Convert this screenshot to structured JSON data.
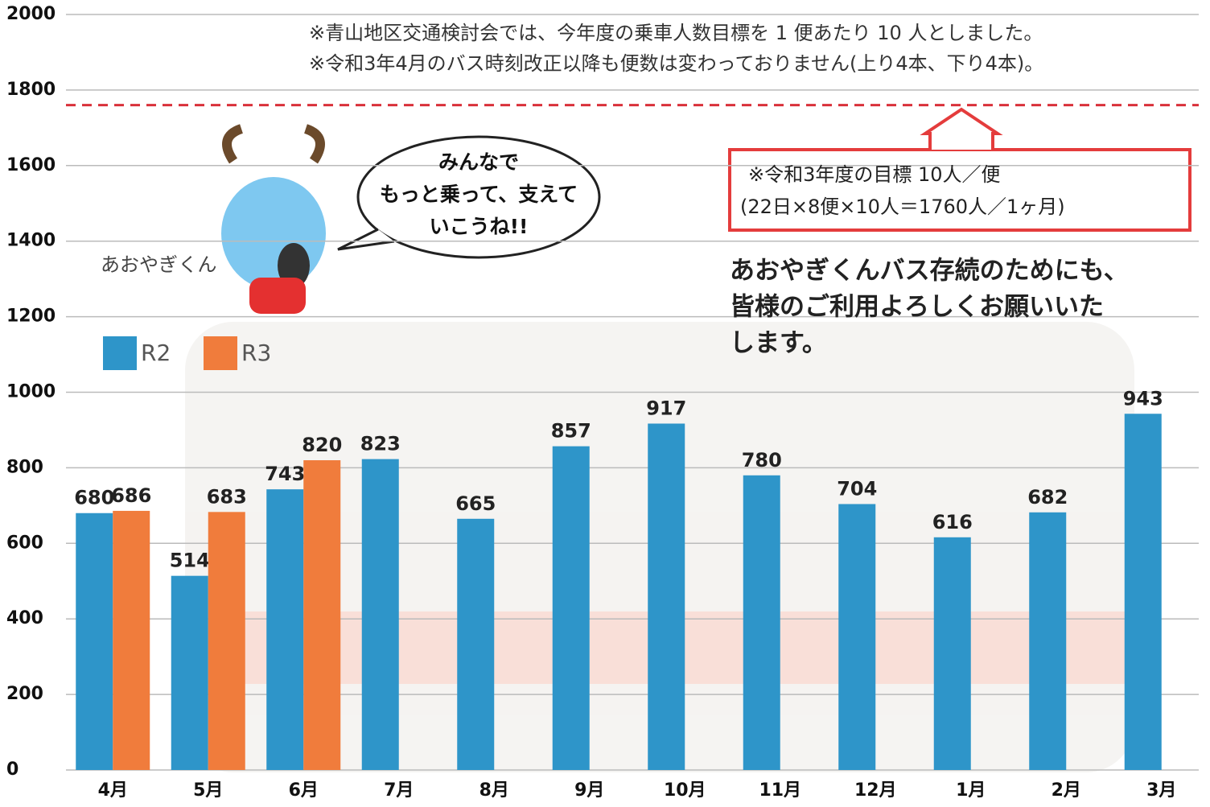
{
  "chart_data": {
    "type": "bar",
    "categories": [
      "4月",
      "5月",
      "6月",
      "7月",
      "8月",
      "9月",
      "10月",
      "11月",
      "12月",
      "1月",
      "2月",
      "3月"
    ],
    "series": [
      {
        "name": "R2",
        "color": "#2e95c9",
        "values": [
          680,
          514,
          743,
          823,
          665,
          857,
          917,
          780,
          704,
          616,
          682,
          943
        ]
      },
      {
        "name": "R3",
        "color": "#f07c3c",
        "values": [
          686,
          683,
          820,
          null,
          null,
          null,
          null,
          null,
          null,
          null,
          null,
          null
        ]
      }
    ],
    "ylim": [
      0,
      2000
    ],
    "yticks": [
      0,
      200,
      400,
      600,
      800,
      1000,
      1200,
      1400,
      1600,
      1800,
      2000
    ],
    "grid": true,
    "target_line": {
      "value": 1760,
      "color": "#d9303a"
    },
    "notes": [
      "※青山地区交通検討会では、今年度の乗車人数目標を 1 便あたり 10 人としました。",
      "※令和3年4月のバス時刻改正以降も便数は変わっておりません(上り4本、下り4本)。"
    ],
    "target_box": [
      "※令和3年度の目標 10人／便",
      "(22日×8便×10人＝1760人／1ヶ月)"
    ],
    "speech_bubble": [
      "みんなで",
      "もっと乗って、支えて",
      "いこうね!!"
    ],
    "mascot_name": "あおやぎくん",
    "message": [
      "あおやぎくんバス存続のためにも、",
      "皆様のご利用よろしくお願いいた",
      "します。"
    ]
  }
}
